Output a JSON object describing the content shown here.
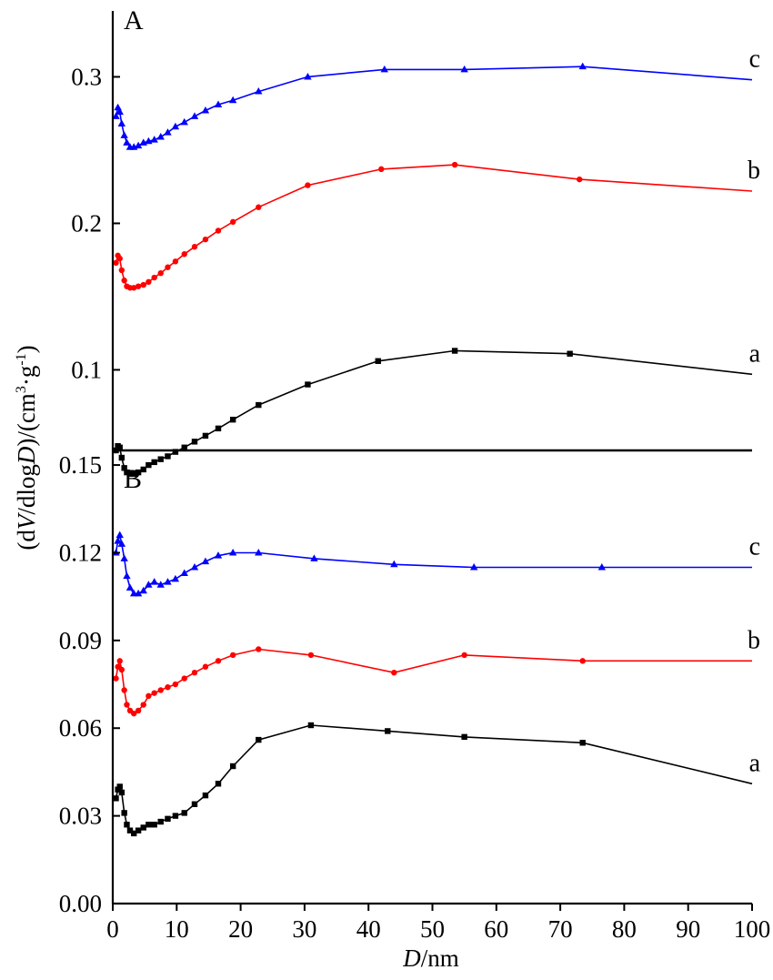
{
  "figure": {
    "xlabel_italic": "D",
    "xlabel_rest": "/nm",
    "ylabel": {
      "p1": "(d",
      "p2": "V",
      "p3": "/dlog",
      "p4": "D",
      "p5": ")/(cm",
      "p6": "3",
      "p7": "·g",
      "p8": "-1",
      "p9": ")"
    },
    "x_ticks": [
      0,
      10,
      20,
      30,
      40,
      50,
      60,
      70,
      80,
      90,
      100
    ],
    "x_tick_labels": [
      "0",
      "10",
      "20",
      "30",
      "40",
      "50",
      "60",
      "70",
      "80",
      "90",
      "100"
    ],
    "xlim": [
      0,
      100
    ]
  },
  "chart_data": [
    {
      "type": "line",
      "panel": "A",
      "ylim": [
        0.045,
        0.345
      ],
      "y_ticks": [
        0.1,
        0.2,
        0.3
      ],
      "y_tick_labels": [
        "0.1",
        "0.2",
        "0.3"
      ],
      "series": [
        {
          "name": "c",
          "color": "#0000ff",
          "marker": "triangle",
          "x": [
            0.5,
            0.8,
            1.1,
            1.4,
            1.8,
            2.2,
            2.7,
            3.3,
            4.0,
            4.8,
            5.6,
            6.5,
            7.5,
            8.6,
            9.8,
            11.2,
            12.8,
            14.5,
            16.5,
            18.8,
            22.8,
            30.5,
            42.5,
            55.0,
            73.5,
            100
          ],
          "y": [
            0.273,
            0.279,
            0.276,
            0.268,
            0.26,
            0.255,
            0.252,
            0.252,
            0.253,
            0.255,
            0.256,
            0.257,
            0.259,
            0.262,
            0.266,
            0.269,
            0.273,
            0.277,
            0.281,
            0.284,
            0.29,
            0.3,
            0.305,
            0.305,
            0.307,
            0.298
          ]
        },
        {
          "name": "b",
          "color": "#ff0000",
          "marker": "circle",
          "x": [
            0.5,
            0.8,
            1.1,
            1.4,
            1.8,
            2.2,
            2.7,
            3.3,
            4.0,
            4.8,
            5.6,
            6.5,
            7.5,
            8.6,
            9.8,
            11.2,
            12.8,
            14.5,
            16.5,
            18.8,
            22.8,
            30.5,
            42.0,
            53.5,
            73.0,
            100
          ],
          "y": [
            0.173,
            0.178,
            0.176,
            0.168,
            0.161,
            0.157,
            0.156,
            0.156,
            0.157,
            0.158,
            0.16,
            0.163,
            0.166,
            0.17,
            0.174,
            0.179,
            0.184,
            0.189,
            0.195,
            0.201,
            0.211,
            0.226,
            0.237,
            0.24,
            0.23,
            0.222
          ]
        },
        {
          "name": "a",
          "color": "#000000",
          "marker": "square",
          "x": [
            0.5,
            0.8,
            1.1,
            1.4,
            1.8,
            2.2,
            2.7,
            3.3,
            4.0,
            4.8,
            5.6,
            6.5,
            7.5,
            8.6,
            9.8,
            11.2,
            12.8,
            14.5,
            16.5,
            18.8,
            22.8,
            30.5,
            41.5,
            53.5,
            71.5,
            100
          ],
          "y": [
            0.045,
            0.048,
            0.047,
            0.04,
            0.033,
            0.03,
            0.029,
            0.029,
            0.03,
            0.032,
            0.035,
            0.037,
            0.039,
            0.041,
            0.044,
            0.047,
            0.051,
            0.055,
            0.06,
            0.066,
            0.076,
            0.09,
            0.106,
            0.113,
            0.111,
            0.097
          ]
        }
      ]
    },
    {
      "type": "line",
      "panel": "B",
      "ylim": [
        0.0,
        0.155
      ],
      "y_ticks": [
        0.0,
        0.03,
        0.06,
        0.09,
        0.12,
        0.15
      ],
      "y_tick_labels": [
        "0.00",
        "0.03",
        "0.06",
        "0.09",
        "0.12",
        "0.15"
      ],
      "series": [
        {
          "name": "c",
          "color": "#0000ff",
          "marker": "triangle",
          "x": [
            0.5,
            0.8,
            1.1,
            1.4,
            1.8,
            2.2,
            2.7,
            3.3,
            4.0,
            4.8,
            5.6,
            6.5,
            7.5,
            8.6,
            9.8,
            11.2,
            12.8,
            14.5,
            16.5,
            18.8,
            22.8,
            31.5,
            44.0,
            56.5,
            76.5,
            100
          ],
          "y": [
            0.12,
            0.124,
            0.126,
            0.123,
            0.118,
            0.112,
            0.108,
            0.106,
            0.106,
            0.107,
            0.109,
            0.11,
            0.109,
            0.11,
            0.111,
            0.113,
            0.115,
            0.117,
            0.119,
            0.12,
            0.12,
            0.118,
            0.116,
            0.115,
            0.115,
            0.115
          ]
        },
        {
          "name": "b",
          "color": "#ff0000",
          "marker": "circle",
          "x": [
            0.5,
            0.8,
            1.1,
            1.4,
            1.8,
            2.2,
            2.7,
            3.3,
            4.0,
            4.8,
            5.6,
            6.5,
            7.5,
            8.6,
            9.8,
            11.2,
            12.8,
            14.5,
            16.5,
            18.8,
            22.8,
            31.0,
            44.0,
            55.0,
            73.5,
            100
          ],
          "y": [
            0.077,
            0.081,
            0.083,
            0.08,
            0.073,
            0.068,
            0.066,
            0.065,
            0.066,
            0.068,
            0.071,
            0.072,
            0.073,
            0.074,
            0.075,
            0.077,
            0.079,
            0.081,
            0.083,
            0.085,
            0.087,
            0.085,
            0.079,
            0.085,
            0.083,
            0.083
          ]
        },
        {
          "name": "a",
          "color": "#000000",
          "marker": "square",
          "x": [
            0.5,
            0.8,
            1.1,
            1.4,
            1.8,
            2.2,
            2.7,
            3.3,
            4.0,
            4.8,
            5.6,
            6.5,
            7.5,
            8.6,
            9.8,
            11.2,
            12.8,
            14.5,
            16.5,
            18.8,
            22.8,
            31.0,
            43.0,
            55.0,
            73.5,
            100
          ],
          "y": [
            0.036,
            0.039,
            0.04,
            0.038,
            0.031,
            0.027,
            0.025,
            0.024,
            0.025,
            0.026,
            0.027,
            0.027,
            0.028,
            0.029,
            0.03,
            0.031,
            0.034,
            0.037,
            0.041,
            0.047,
            0.056,
            0.061,
            0.059,
            0.057,
            0.055,
            0.041
          ]
        }
      ]
    }
  ]
}
